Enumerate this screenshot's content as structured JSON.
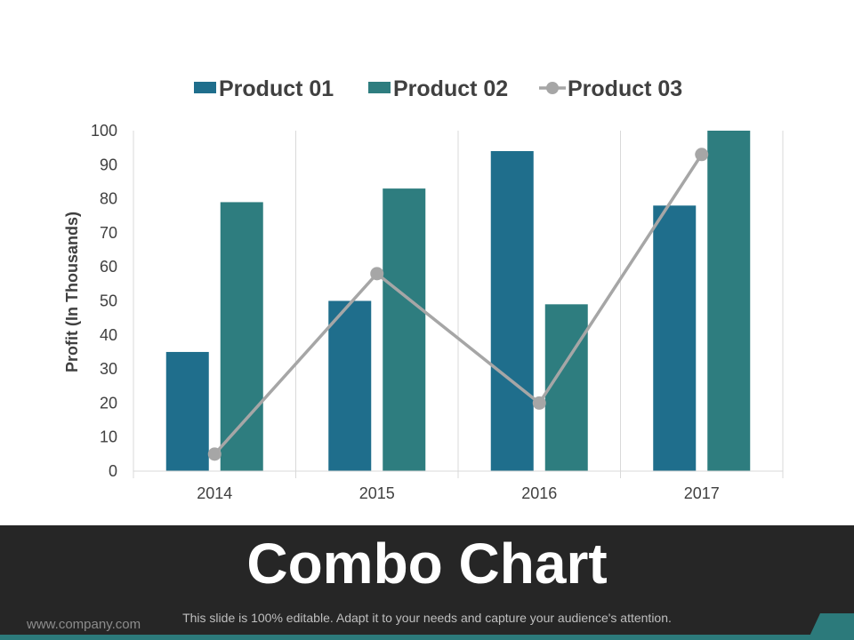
{
  "slide": {
    "title": "Combo Chart",
    "tagline": "This slide is 100% editable. Adapt it to your needs and capture your audience's attention.",
    "website": "www.company.com"
  },
  "colors": {
    "product01": "#1f6e8c",
    "product02": "#2e7d7f",
    "product03": "#a6a6a6",
    "footer_band": "#262626",
    "footer_accent": "#2c7a7b"
  },
  "chart_data": {
    "type": "bar",
    "categories": [
      "2014",
      "2015",
      "2016",
      "2017"
    ],
    "series": [
      {
        "name": "Product 01",
        "type": "bar",
        "values": [
          35,
          50,
          94,
          78
        ]
      },
      {
        "name": "Product 02",
        "type": "bar",
        "values": [
          79,
          83,
          49,
          100
        ]
      },
      {
        "name": "Product 03",
        "type": "line",
        "values": [
          5,
          58,
          20,
          93
        ]
      }
    ],
    "ylabel": "Profit  (In Thousands)",
    "ylim": [
      0,
      100
    ],
    "yticks": [
      "0",
      "10",
      "20",
      "30",
      "40",
      "50",
      "60",
      "70",
      "80",
      "90",
      "100"
    ],
    "grid": "vertical",
    "legend": "top"
  }
}
